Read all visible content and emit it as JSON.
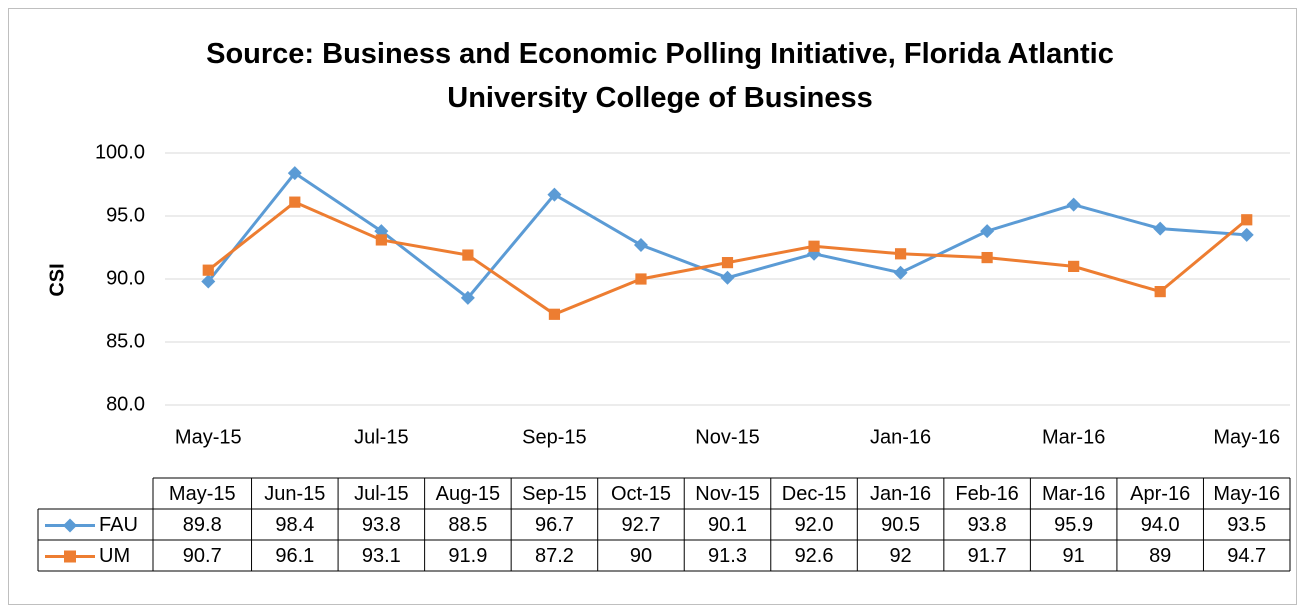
{
  "chart_data": {
    "type": "line",
    "title": "Source: Business and Economic Polling Initiative, Florida Atlantic University College of Business",
    "y_label": "CSI",
    "categories": [
      "May-15",
      "Jun-15",
      "Jul-15",
      "Aug-15",
      "Sep-15",
      "Oct-15",
      "Nov-15",
      "Dec-15",
      "Jan-16",
      "Feb-16",
      "Mar-16",
      "Apr-16",
      "May-16"
    ],
    "series": [
      {
        "name": "FAU",
        "color": "#5b9bd5",
        "marker": "diamond",
        "values": [
          89.8,
          98.4,
          93.8,
          88.5,
          96.7,
          92.7,
          90.1,
          92,
          90.5,
          93.8,
          95.9,
          94,
          93.5
        ],
        "value_labels": [
          "89.8",
          "98.4",
          "93.8",
          "88.5",
          "96.7",
          "92.7",
          "90.1",
          "92.0",
          "90.5",
          "93.8",
          "95.9",
          "94.0",
          "93.5"
        ]
      },
      {
        "name": "UM",
        "color": "#ed7d31",
        "marker": "square",
        "values": [
          90.7,
          96.1,
          93.1,
          91.9,
          87.2,
          90,
          91.3,
          92.6,
          92,
          91.7,
          91,
          89,
          94.7
        ]
      }
    ],
    "ylim": [
      80,
      100
    ],
    "yticks": [
      {
        "value": 80,
        "label": "80.0"
      },
      {
        "value": 85,
        "label": "85.0"
      },
      {
        "value": 90,
        "label": "90.0"
      },
      {
        "value": 95,
        "label": "95.0"
      },
      {
        "value": 100,
        "label": "100.0"
      }
    ],
    "grid": true,
    "data_table": true
  }
}
